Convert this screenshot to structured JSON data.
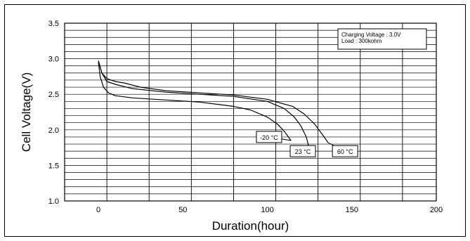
{
  "chart_data": {
    "type": "line",
    "title": "",
    "xlabel": "Duration(hour)",
    "ylabel": "Cell Voltage(V)",
    "xlim": [
      -20,
      200
    ],
    "ylim": [
      1.0,
      3.5
    ],
    "x_ticks": [
      0,
      50,
      100,
      150,
      200
    ],
    "y_ticks": [
      1.0,
      1.5,
      2.0,
      2.5,
      3.0,
      3.5
    ],
    "x_tick_labels": [
      "0",
      "50",
      "100",
      "150",
      "200"
    ],
    "y_tick_labels": [
      "1.0",
      "1.5",
      "2.0",
      "2.5",
      "3.0",
      "3.5"
    ],
    "grid": true,
    "info_box": [
      "Charging Voltage : 3.0V",
      "Load : 300kohm"
    ],
    "series": [
      {
        "name": "-20 °C",
        "x": [
          0,
          1,
          3,
          6,
          10,
          20,
          40,
          60,
          80,
          90,
          100,
          106,
          110,
          114
        ],
        "y": [
          2.95,
          2.75,
          2.6,
          2.52,
          2.48,
          2.45,
          2.42,
          2.39,
          2.33,
          2.28,
          2.18,
          2.08,
          1.98,
          1.85
        ]
      },
      {
        "name": "23 °C",
        "x": [
          0,
          2,
          5,
          10,
          20,
          40,
          60,
          80,
          100,
          110,
          116,
          120,
          123,
          125
        ],
        "y": [
          2.97,
          2.8,
          2.68,
          2.64,
          2.58,
          2.53,
          2.5,
          2.47,
          2.4,
          2.3,
          2.18,
          2.05,
          1.9,
          1.72
        ]
      },
      {
        "name": "60 °C",
        "x": [
          0,
          2,
          5,
          10,
          15,
          25,
          40,
          60,
          80,
          100,
          115,
          122,
          128,
          133,
          136
        ],
        "y": [
          2.97,
          2.8,
          2.72,
          2.68,
          2.66,
          2.6,
          2.55,
          2.52,
          2.49,
          2.43,
          2.33,
          2.22,
          2.08,
          1.92,
          1.82
        ]
      }
    ]
  }
}
